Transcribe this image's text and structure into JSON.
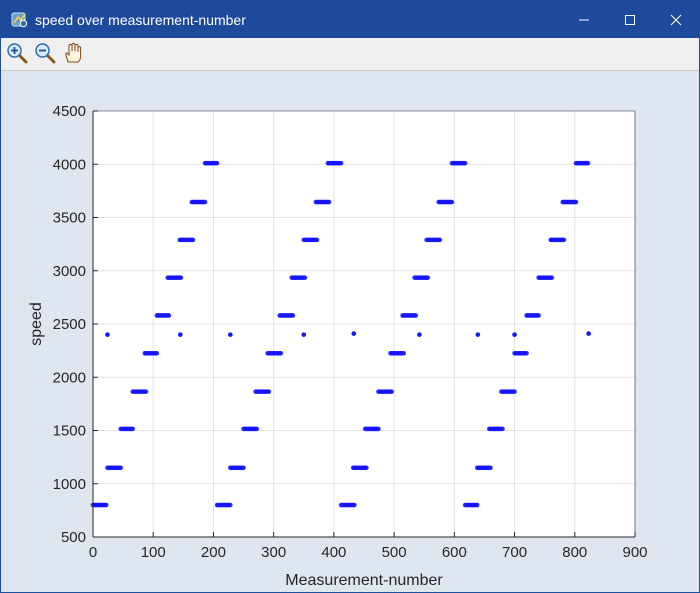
{
  "window": {
    "title": "speed over measurement-number"
  },
  "icons": {
    "app": "matlab-figure-icon",
    "minimize": "minimize-icon",
    "maximize": "maximize-icon",
    "close": "close-icon",
    "zoom_in": "zoom-in-icon",
    "zoom_out": "zoom-out-icon",
    "pan": "pan-hand-icon"
  },
  "colors": {
    "titlebar": "#1e4a9b",
    "figure_bg": "#dfe6f0",
    "points": "#1414ff"
  },
  "chart_data": {
    "type": "scatter",
    "xlabel": "Measurement-number",
    "ylabel": "speed",
    "xlim": [
      0,
      900
    ],
    "ylim": [
      500,
      4500
    ],
    "xticks": [
      0,
      100,
      200,
      300,
      400,
      500,
      600,
      700,
      800,
      900
    ],
    "yticks": [
      500,
      1000,
      1500,
      2000,
      2500,
      3000,
      3500,
      4000,
      4500
    ],
    "xtick_labels": [
      "0",
      "100",
      "200",
      "300",
      "400",
      "500",
      "600",
      "700",
      "800",
      "900"
    ],
    "ytick_labels": [
      "500",
      "1000",
      "1500",
      "2000",
      "2500",
      "3000",
      "3500",
      "4000",
      "4500"
    ],
    "grid": true,
    "segments": [
      {
        "x0": 0,
        "x1": 22,
        "y": 800
      },
      {
        "x0": 24,
        "x1": 46,
        "y": 1150
      },
      {
        "x0": 46,
        "x1": 66,
        "y": 1515
      },
      {
        "x0": 66,
        "x1": 88,
        "y": 1865
      },
      {
        "x0": 86,
        "x1": 106,
        "y": 2225
      },
      {
        "x0": 106,
        "x1": 126,
        "y": 2580
      },
      {
        "x0": 124,
        "x1": 146,
        "y": 2935
      },
      {
        "x0": 144,
        "x1": 166,
        "y": 3290
      },
      {
        "x0": 164,
        "x1": 186,
        "y": 3645
      },
      {
        "x0": 186,
        "x1": 206,
        "y": 4010
      },
      {
        "x0": 206,
        "x1": 228,
        "y": 800
      },
      {
        "x0": 228,
        "x1": 250,
        "y": 1150
      },
      {
        "x0": 250,
        "x1": 272,
        "y": 1515
      },
      {
        "x0": 270,
        "x1": 292,
        "y": 1865
      },
      {
        "x0": 290,
        "x1": 312,
        "y": 2225
      },
      {
        "x0": 310,
        "x1": 332,
        "y": 2580
      },
      {
        "x0": 330,
        "x1": 352,
        "y": 2935
      },
      {
        "x0": 350,
        "x1": 372,
        "y": 3290
      },
      {
        "x0": 370,
        "x1": 392,
        "y": 3645
      },
      {
        "x0": 390,
        "x1": 412,
        "y": 4010
      },
      {
        "x0": 412,
        "x1": 434,
        "y": 800
      },
      {
        "x0": 432,
        "x1": 454,
        "y": 1150
      },
      {
        "x0": 452,
        "x1": 474,
        "y": 1515
      },
      {
        "x0": 474,
        "x1": 496,
        "y": 1865
      },
      {
        "x0": 494,
        "x1": 516,
        "y": 2225
      },
      {
        "x0": 514,
        "x1": 536,
        "y": 2580
      },
      {
        "x0": 534,
        "x1": 556,
        "y": 2935
      },
      {
        "x0": 554,
        "x1": 576,
        "y": 3290
      },
      {
        "x0": 574,
        "x1": 596,
        "y": 3645
      },
      {
        "x0": 596,
        "x1": 618,
        "y": 4010
      },
      {
        "x0": 618,
        "x1": 638,
        "y": 800
      },
      {
        "x0": 638,
        "x1": 660,
        "y": 1150
      },
      {
        "x0": 658,
        "x1": 680,
        "y": 1515
      },
      {
        "x0": 678,
        "x1": 700,
        "y": 1865
      },
      {
        "x0": 700,
        "x1": 720,
        "y": 2225
      },
      {
        "x0": 720,
        "x1": 740,
        "y": 2580
      },
      {
        "x0": 740,
        "x1": 762,
        "y": 2935
      },
      {
        "x0": 760,
        "x1": 782,
        "y": 3290
      },
      {
        "x0": 780,
        "x1": 802,
        "y": 3645
      },
      {
        "x0": 802,
        "x1": 822,
        "y": 4010
      }
    ],
    "isolated_points": [
      {
        "x": 24,
        "y": 2400
      },
      {
        "x": 145,
        "y": 2400
      },
      {
        "x": 228,
        "y": 2400
      },
      {
        "x": 350,
        "y": 2400
      },
      {
        "x": 433,
        "y": 2410
      },
      {
        "x": 542,
        "y": 2400
      },
      {
        "x": 639,
        "y": 2400
      },
      {
        "x": 700,
        "y": 2400
      },
      {
        "x": 823,
        "y": 2410
      }
    ]
  }
}
